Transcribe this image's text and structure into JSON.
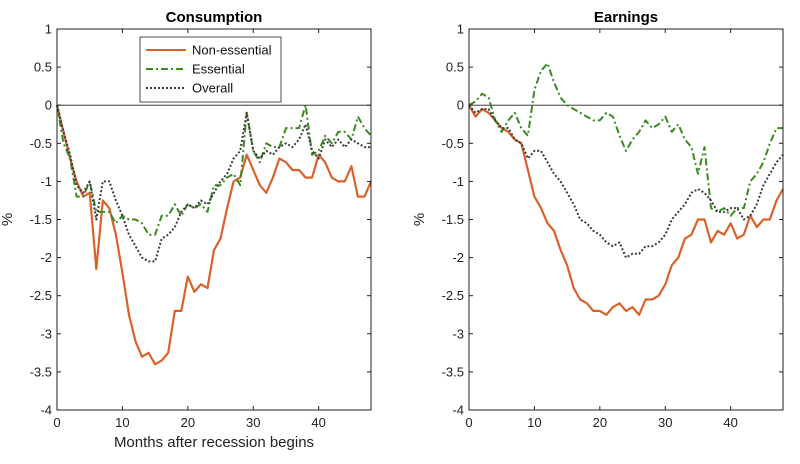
{
  "chart_data": [
    {
      "type": "line",
      "title": "Consumption",
      "xlabel": "Months after recession begins",
      "ylabel": "%",
      "xlim": [
        0,
        48
      ],
      "ylim": [
        -4,
        1
      ],
      "xticks": [
        "0",
        "10",
        "20",
        "30",
        "40"
      ],
      "yticks": [
        "1",
        "0.5",
        "0",
        "-0.5",
        "-1",
        "-1.5",
        "-2",
        "-2.5",
        "-3",
        "-3.5",
        "-4"
      ],
      "zero_line": true,
      "legend": "top-center",
      "series": [
        {
          "name": "Non-essential",
          "color": "#d9622b",
          "style": "solid",
          "x": [
            0,
            1,
            2,
            3,
            4,
            5,
            6,
            7,
            8,
            9,
            10,
            11,
            12,
            13,
            14,
            15,
            16,
            17,
            18,
            19,
            20,
            21,
            22,
            23,
            24,
            25,
            26,
            27,
            28,
            29,
            30,
            31,
            32,
            33,
            34,
            35,
            36,
            37,
            38,
            39,
            40,
            41,
            42,
            43,
            44,
            45,
            46,
            47,
            48
          ],
          "y": [
            0,
            -0.35,
            -0.7,
            -1.0,
            -1.2,
            -1.15,
            -2.15,
            -1.25,
            -1.35,
            -1.7,
            -2.2,
            -2.75,
            -3.1,
            -3.3,
            -3.25,
            -3.4,
            -3.35,
            -3.25,
            -2.7,
            -2.7,
            -2.25,
            -2.45,
            -2.35,
            -2.4,
            -1.9,
            -1.75,
            -1.35,
            -1.0,
            -0.95,
            -0.65,
            -0.85,
            -1.05,
            -1.15,
            -0.95,
            -0.7,
            -0.75,
            -0.85,
            -0.85,
            -0.95,
            -0.95,
            -0.65,
            -0.75,
            -0.95,
            -1.0,
            -1.0,
            -0.8,
            -1.2,
            -1.2,
            -1.0
          ]
        },
        {
          "name": "Essential",
          "color": "#3a8a21",
          "style": "dashdot",
          "x": [
            0,
            1,
            2,
            3,
            4,
            5,
            6,
            7,
            8,
            9,
            10,
            11,
            12,
            13,
            14,
            15,
            16,
            17,
            18,
            19,
            20,
            21,
            22,
            23,
            24,
            25,
            26,
            27,
            28,
            29,
            30,
            31,
            32,
            33,
            34,
            35,
            36,
            37,
            38,
            39,
            40,
            41,
            42,
            43,
            44,
            45,
            46,
            47,
            48
          ],
          "y": [
            0,
            -0.5,
            -0.7,
            -1.2,
            -1.2,
            -1.0,
            -1.4,
            -1.4,
            -1.4,
            -1.55,
            -1.45,
            -1.5,
            -1.5,
            -1.55,
            -1.7,
            -1.7,
            -1.45,
            -1.45,
            -1.3,
            -1.45,
            -1.3,
            -1.35,
            -1.3,
            -1.4,
            -1.05,
            -1.05,
            -0.95,
            -0.9,
            -1.05,
            -0.1,
            -0.6,
            -0.75,
            -0.5,
            -0.55,
            -0.55,
            -0.3,
            -0.3,
            -0.3,
            0.0,
            -0.65,
            -0.6,
            -0.4,
            -0.5,
            -0.35,
            -0.35,
            -0.45,
            -0.15,
            -0.3,
            -0.4
          ]
        },
        {
          "name": "Overall",
          "color": "#3c3c3c",
          "style": "dotted",
          "x": [
            0,
            1,
            2,
            3,
            4,
            5,
            6,
            7,
            8,
            9,
            10,
            11,
            12,
            13,
            14,
            15,
            16,
            17,
            18,
            19,
            20,
            21,
            22,
            23,
            24,
            25,
            26,
            27,
            28,
            29,
            30,
            31,
            32,
            33,
            34,
            35,
            36,
            37,
            38,
            39,
            40,
            41,
            42,
            43,
            44,
            45,
            46,
            47,
            48
          ],
          "y": [
            0,
            -0.35,
            -0.65,
            -1.05,
            -1.15,
            -1.0,
            -1.5,
            -1.0,
            -1.0,
            -1.25,
            -1.45,
            -1.7,
            -1.85,
            -2.0,
            -2.05,
            -2.05,
            -1.75,
            -1.7,
            -1.6,
            -1.4,
            -1.3,
            -1.35,
            -1.25,
            -1.3,
            -1.15,
            -1.0,
            -0.9,
            -0.7,
            -0.6,
            -0.1,
            -0.6,
            -0.7,
            -0.6,
            -0.65,
            -0.55,
            -0.5,
            -0.55,
            -0.45,
            -0.25,
            -0.6,
            -0.7,
            -0.45,
            -0.55,
            -0.45,
            -0.55,
            -0.45,
            -0.5,
            -0.55,
            -0.55
          ]
        }
      ]
    },
    {
      "type": "line",
      "title": "Earnings",
      "xlabel": "",
      "ylabel": "%",
      "xlim": [
        0,
        48
      ],
      "ylim": [
        -4,
        1
      ],
      "xticks": [
        "0",
        "10",
        "20",
        "30",
        "40"
      ],
      "yticks": [
        "1",
        "0.5",
        "0",
        "-0.5",
        "-1",
        "-1.5",
        "-2",
        "-2.5",
        "-3",
        "-3.5",
        "-4"
      ],
      "zero_line": true,
      "series": [
        {
          "name": "Non-essential",
          "color": "#d9622b",
          "style": "solid",
          "x": [
            0,
            1,
            2,
            3,
            4,
            5,
            6,
            7,
            8,
            9,
            10,
            11,
            12,
            13,
            14,
            15,
            16,
            17,
            18,
            19,
            20,
            21,
            22,
            23,
            24,
            25,
            26,
            27,
            28,
            29,
            30,
            31,
            32,
            33,
            34,
            35,
            36,
            37,
            38,
            39,
            40,
            41,
            42,
            43,
            44,
            45,
            46,
            47,
            48
          ],
          "y": [
            0,
            -0.15,
            -0.05,
            -0.1,
            -0.2,
            -0.3,
            -0.35,
            -0.45,
            -0.5,
            -0.85,
            -1.2,
            -1.35,
            -1.55,
            -1.65,
            -1.9,
            -2.1,
            -2.4,
            -2.55,
            -2.6,
            -2.7,
            -2.7,
            -2.75,
            -2.65,
            -2.6,
            -2.7,
            -2.65,
            -2.75,
            -2.55,
            -2.55,
            -2.5,
            -2.35,
            -2.1,
            -2.0,
            -1.75,
            -1.7,
            -1.5,
            -1.5,
            -1.8,
            -1.65,
            -1.7,
            -1.55,
            -1.75,
            -1.7,
            -1.45,
            -1.6,
            -1.5,
            -1.5,
            -1.25,
            -1.1
          ]
        },
        {
          "name": "Essential",
          "color": "#3a8a21",
          "style": "dashdot",
          "x": [
            0,
            1,
            2,
            3,
            4,
            5,
            6,
            7,
            8,
            9,
            10,
            11,
            12,
            13,
            14,
            15,
            16,
            17,
            18,
            19,
            20,
            21,
            22,
            23,
            24,
            25,
            26,
            27,
            28,
            29,
            30,
            31,
            32,
            33,
            34,
            35,
            36,
            37,
            38,
            39,
            40,
            41,
            42,
            43,
            44,
            45,
            46,
            47,
            48
          ],
          "y": [
            0,
            0.05,
            0.15,
            0.1,
            -0.2,
            -0.35,
            -0.2,
            -0.1,
            -0.3,
            -0.4,
            0.2,
            0.45,
            0.55,
            0.3,
            0.1,
            0.0,
            -0.05,
            -0.1,
            -0.15,
            -0.2,
            -0.2,
            -0.1,
            -0.15,
            -0.4,
            -0.6,
            -0.45,
            -0.35,
            -0.2,
            -0.3,
            -0.25,
            -0.15,
            -0.35,
            -0.25,
            -0.45,
            -0.55,
            -0.9,
            -0.55,
            -1.35,
            -1.4,
            -1.35,
            -1.45,
            -1.35,
            -1.35,
            -1.0,
            -0.9,
            -0.75,
            -0.5,
            -0.3,
            -0.3
          ]
        },
        {
          "name": "Overall",
          "color": "#3c3c3c",
          "style": "dotted",
          "x": [
            0,
            1,
            2,
            3,
            4,
            5,
            6,
            7,
            8,
            9,
            10,
            11,
            12,
            13,
            14,
            15,
            16,
            17,
            18,
            19,
            20,
            21,
            22,
            23,
            24,
            25,
            26,
            27,
            28,
            29,
            30,
            31,
            32,
            33,
            34,
            35,
            36,
            37,
            38,
            39,
            40,
            41,
            42,
            43,
            44,
            45,
            46,
            47,
            48
          ],
          "y": [
            0,
            -0.1,
            -0.05,
            -0.05,
            -0.2,
            -0.3,
            -0.3,
            -0.45,
            -0.5,
            -0.7,
            -0.6,
            -0.6,
            -0.75,
            -0.9,
            -1.0,
            -1.15,
            -1.3,
            -1.5,
            -1.55,
            -1.65,
            -1.7,
            -1.8,
            -1.85,
            -1.8,
            -2.0,
            -1.95,
            -1.95,
            -1.85,
            -1.85,
            -1.8,
            -1.7,
            -1.5,
            -1.4,
            -1.3,
            -1.15,
            -1.1,
            -1.15,
            -1.25,
            -1.4,
            -1.4,
            -1.35,
            -1.35,
            -1.5,
            -1.45,
            -1.3,
            -1.05,
            -0.9,
            -0.75,
            -0.65
          ]
        }
      ]
    }
  ]
}
